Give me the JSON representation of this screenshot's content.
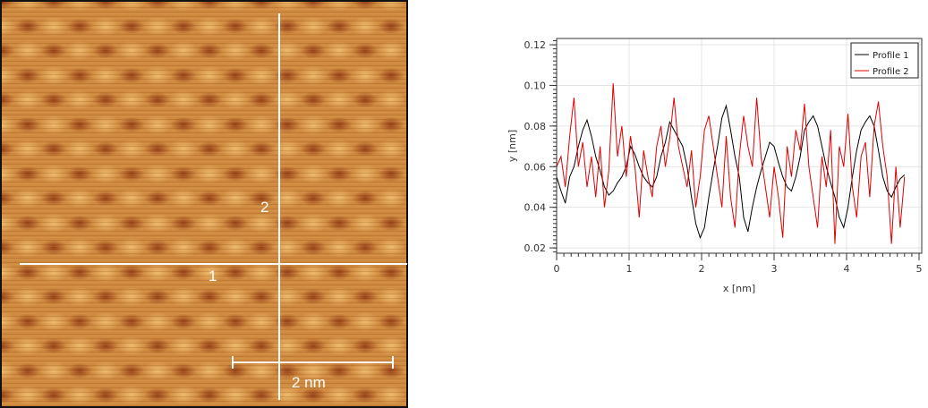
{
  "image": {
    "line_labels": [
      "1",
      "2"
    ],
    "scale_bar_label": "2 nm"
  },
  "chart_data": {
    "type": "line",
    "title": "",
    "xlabel": "x [nm]",
    "ylabel": "y [nm]",
    "xlim": [
      0,
      5
    ],
    "ylim": [
      0.0174,
      0.1231
    ],
    "x_ticks": [
      "0",
      "1",
      "2",
      "3",
      "4",
      "5"
    ],
    "y_ticks": [
      "0.02",
      "0.04",
      "0.06",
      "0.08",
      "0.10",
      "0.12"
    ],
    "grid": true,
    "legend": "top-right",
    "series": [
      {
        "name": "Profile 1",
        "color": "#000000",
        "x_start": 0,
        "x_step": 0.06,
        "values": [
          0.055,
          0.048,
          0.042,
          0.055,
          0.06,
          0.07,
          0.078,
          0.083,
          0.075,
          0.065,
          0.058,
          0.05,
          0.046,
          0.048,
          0.052,
          0.055,
          0.06,
          0.07,
          0.066,
          0.06,
          0.055,
          0.052,
          0.05,
          0.055,
          0.065,
          0.072,
          0.082,
          0.078,
          0.074,
          0.07,
          0.06,
          0.045,
          0.032,
          0.025,
          0.03,
          0.045,
          0.058,
          0.07,
          0.084,
          0.09,
          0.078,
          0.065,
          0.055,
          0.035,
          0.028,
          0.04,
          0.05,
          0.058,
          0.065,
          0.072,
          0.07,
          0.062,
          0.055,
          0.05,
          0.048,
          0.055,
          0.065,
          0.078,
          0.082,
          0.085,
          0.08,
          0.07,
          0.06,
          0.052,
          0.045,
          0.035,
          0.03,
          0.04,
          0.055,
          0.068,
          0.078,
          0.082,
          0.085,
          0.08,
          0.068,
          0.055,
          0.048,
          0.045,
          0.05,
          0.054,
          0.056
        ]
      },
      {
        "name": "Profile 2",
        "color": "#e00000",
        "x_start": 0,
        "x_step": 0.06,
        "values": [
          0.06,
          0.065,
          0.05,
          0.075,
          0.094,
          0.06,
          0.072,
          0.05,
          0.065,
          0.045,
          0.07,
          0.04,
          0.058,
          0.101,
          0.065,
          0.08,
          0.055,
          0.075,
          0.06,
          0.035,
          0.068,
          0.055,
          0.045,
          0.07,
          0.08,
          0.06,
          0.074,
          0.094,
          0.07,
          0.06,
          0.05,
          0.068,
          0.04,
          0.055,
          0.078,
          0.085,
          0.07,
          0.055,
          0.04,
          0.075,
          0.045,
          0.03,
          0.065,
          0.085,
          0.07,
          0.06,
          0.094,
          0.065,
          0.05,
          0.035,
          0.06,
          0.045,
          0.025,
          0.07,
          0.055,
          0.078,
          0.068,
          0.091,
          0.06,
          0.045,
          0.03,
          0.065,
          0.05,
          0.078,
          0.022,
          0.07,
          0.06,
          0.086,
          0.05,
          0.035,
          0.065,
          0.072,
          0.045,
          0.08,
          0.092,
          0.07,
          0.055,
          0.022,
          0.06,
          0.03,
          0.055
        ]
      }
    ]
  }
}
